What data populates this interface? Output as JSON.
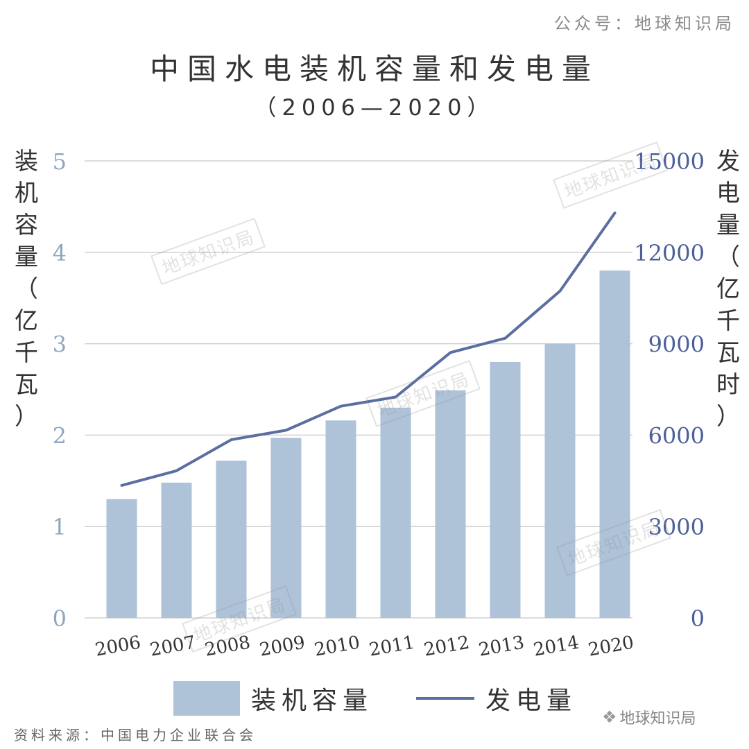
{
  "header": {
    "credit": "公众号：地球知识局",
    "title": "中国水电装机容量和发电量",
    "subtitle": "（2006—2020）"
  },
  "axes": {
    "left_label_chars": [
      "装",
      "机",
      "容",
      "量",
      "（",
      "亿",
      "千",
      "瓦",
      "）"
    ],
    "right_label_chars": [
      "发",
      "电",
      "量",
      "（",
      "亿",
      "千",
      "瓦",
      "时",
      "）"
    ],
    "left_color": "#8fa6bf",
    "right_color": "#4c5f99"
  },
  "legend": {
    "bar_label": "装机容量",
    "line_label": "发电量"
  },
  "footer": {
    "source": "资料来源：中国电力企业联合会",
    "brand": "地球知识局",
    "brand_icon": "wechat-icon"
  },
  "watermark_text": "地球知识局",
  "chart_data": {
    "type": "bar+line",
    "title": "中国水电装机容量和发电量",
    "subtitle": "（2006—2020）",
    "categories": [
      "2006",
      "2007",
      "2008",
      "2009",
      "2010",
      "2011",
      "2012",
      "2013",
      "2014",
      "2020"
    ],
    "series": [
      {
        "name": "装机容量",
        "type": "bar",
        "axis": "left",
        "color": "#aec2d8",
        "values": [
          1.3,
          1.48,
          1.72,
          1.97,
          2.16,
          2.3,
          2.49,
          2.8,
          3.0,
          3.8
        ]
      },
      {
        "name": "发电量",
        "type": "line",
        "axis": "right",
        "color": "#5a6fa0",
        "values": [
          4350,
          4830,
          5850,
          6160,
          6950,
          7250,
          8710,
          9180,
          10730,
          13290
        ]
      }
    ],
    "ylabel_left": "装机容量（亿千瓦）",
    "ylabel_right": "发电量（亿千瓦时）",
    "ylim_left": [
      0,
      5
    ],
    "ylim_right": [
      0,
      15000
    ],
    "yticks_left": [
      "0",
      "1",
      "2",
      "3",
      "4",
      "5"
    ],
    "yticks_right": [
      "0",
      "3000",
      "6000",
      "9000",
      "12000",
      "15000"
    ],
    "grid": true,
    "legend_position": "bottom"
  }
}
